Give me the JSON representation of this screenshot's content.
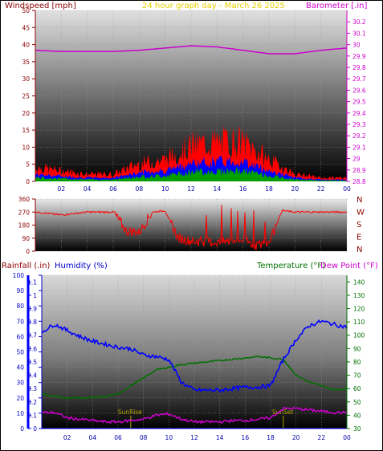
{
  "title": "24 hour graph day - March 26 2025",
  "colors": {
    "wind": "#ff0000",
    "gust_dark": "#006400",
    "gust_green": "#00a000",
    "gust_blue": "#0000ff",
    "barometer": "#cc00cc",
    "humidity": "#0000ff",
    "temperature": "#007000",
    "dewpoint": "#cc00cc",
    "rainfall": "#0000ff",
    "title": "#e6d000",
    "sun": "#b0a000",
    "text_dark": "#8b0000",
    "frame_bg": "#ffffff"
  },
  "hour_ticks": [
    "02",
    "04",
    "06",
    "08",
    "10",
    "12",
    "14",
    "16",
    "18",
    "20",
    "22",
    "00"
  ],
  "chart_data": [
    {
      "type": "line",
      "title": "24 hour graph day - March 26 2025",
      "left_axis_label": "Windspeed [mph]",
      "right_axis_label": "Barometer [.in]",
      "left_ylim": [
        0,
        50
      ],
      "left_ticks": [
        "0",
        "5",
        "10",
        "15",
        "20",
        "25",
        "30",
        "35",
        "40",
        "45",
        "50"
      ],
      "right_ylim": [
        28.8,
        30.3
      ],
      "right_ticks": [
        "28.8",
        "28.9",
        "29",
        "29.1",
        "29.2",
        "29.3",
        "29.4",
        "29.5",
        "29.6",
        "29.7",
        "29.8",
        "29.9",
        "30",
        "30.1",
        "30.2"
      ],
      "x_hours": [
        0,
        2,
        4,
        6,
        8,
        10,
        12,
        14,
        16,
        18,
        20,
        22,
        24
      ],
      "series": [
        {
          "values": [
            4,
            3,
            2,
            2,
            5,
            6,
            10,
            11,
            11,
            6,
            2,
            1,
            1
          ]
        },
        {
          "values": [
            29.95,
            29.94,
            29.94,
            29.94,
            29.95,
            29.97,
            29.99,
            29.98,
            29.95,
            29.92,
            29.92,
            29.95,
            29.97
          ]
        }
      ]
    },
    {
      "type": "line",
      "left_ticks": [
        "0",
        "90",
        "180",
        "270",
        "360"
      ],
      "right_labels": [
        "N",
        "W",
        "S",
        "E",
        "N"
      ],
      "ylim": [
        0,
        360
      ],
      "x_hours": [
        0,
        2,
        4,
        6,
        7,
        8,
        9,
        10,
        11,
        12,
        14,
        16,
        17,
        18,
        19,
        20,
        22,
        24
      ],
      "series": [
        {
          "values": [
            270,
            250,
            270,
            270,
            140,
            130,
            270,
            280,
            90,
            70,
            60,
            80,
            40,
            60,
            280,
            270,
            270,
            270
          ]
        }
      ]
    },
    {
      "type": "line",
      "left_axis_label": "Rainfall (.in)",
      "left2_axis_label": "Humidity (%)",
      "right_axis_label": "Temperature (°F)",
      "right2_axis_label": "Dew Point (°F)",
      "rain_ticks": [
        "0",
        "0.1",
        "0.2",
        "0.3",
        "0.4",
        "0.5",
        "0.6",
        "0.7",
        "0.8",
        "0.9",
        "1",
        "1.1"
      ],
      "humidity_ticks": [
        "0",
        "10",
        "20",
        "30",
        "40",
        "50",
        "60",
        "70",
        "80",
        "90",
        "100"
      ],
      "temp_ticks": [
        "30",
        "40",
        "50",
        "60",
        "70",
        "80",
        "90",
        "100",
        "110",
        "120",
        "130",
        "140"
      ],
      "ylim_humidity": [
        0,
        100
      ],
      "ylim_temp": [
        30,
        145
      ],
      "x_hours": [
        0,
        1,
        2,
        3,
        4,
        5,
        6,
        7,
        8,
        9,
        10,
        11,
        12,
        13,
        14,
        15,
        16,
        17,
        18,
        19,
        20,
        21,
        22,
        23,
        24
      ],
      "series": [
        {
          "values": [
            63,
            68,
            64,
            60,
            57,
            55,
            53,
            52,
            48,
            47,
            45,
            30,
            25,
            25,
            25,
            26,
            27,
            27,
            28,
            45,
            58,
            67,
            70,
            68,
            66
          ]
        },
        {
          "values": [
            56,
            54,
            53,
            53,
            53,
            54,
            56,
            62,
            68,
            74,
            76,
            78,
            79,
            80,
            81,
            82,
            83,
            84,
            83,
            82,
            70,
            65,
            62,
            59,
            60
          ]
        },
        {
          "values": [
            42,
            42,
            38,
            37,
            36,
            35,
            35,
            36,
            37,
            40,
            41,
            37,
            35,
            35,
            35,
            36,
            36,
            37,
            38,
            45,
            45,
            44,
            43,
            42,
            42
          ]
        },
        {
          "values": [
            0,
            0,
            0,
            0,
            0,
            0,
            0,
            0,
            0,
            0,
            0,
            0,
            0,
            0,
            0,
            0,
            0,
            0,
            0,
            0,
            0,
            0,
            0,
            0,
            0
          ]
        }
      ],
      "annotations": [
        "SunRise",
        "SunSet"
      ],
      "sunrise_hour": 7,
      "sunset_hour": 19
    }
  ]
}
